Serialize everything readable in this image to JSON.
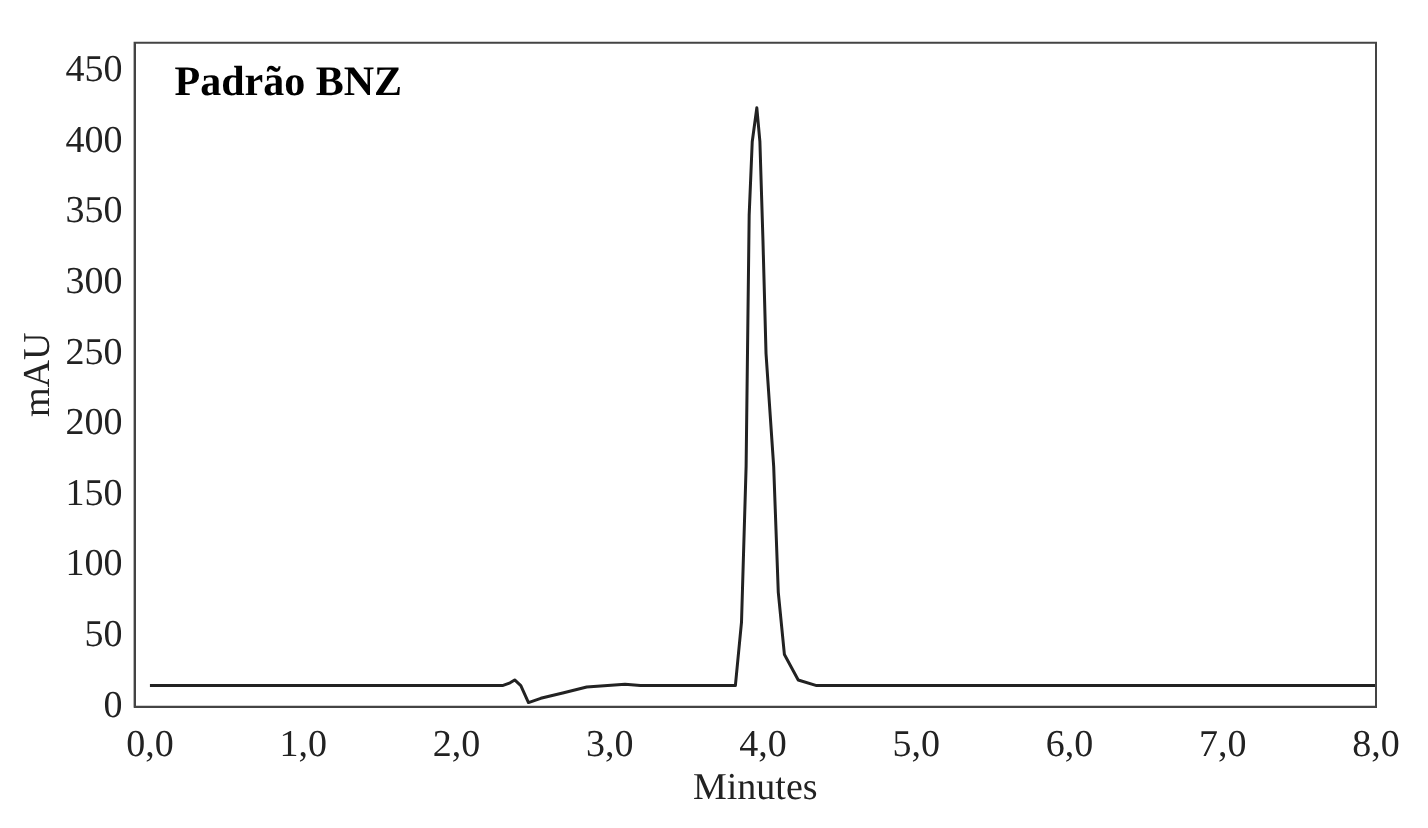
{
  "chart_data": {
    "type": "line",
    "xlabel": "Minutes",
    "ylabel": "mAU",
    "annotations": [
      "Padrão BNZ"
    ],
    "x": [
      0,
      2.3,
      2.35,
      2.38,
      2.42,
      2.47,
      2.55,
      2.7,
      2.85,
      3.1,
      3.2,
      3.82,
      3.86,
      3.89,
      3.91,
      3.93,
      3.96,
      3.98,
      4.0,
      4.02,
      4.07,
      4.1,
      4.14,
      4.23,
      4.35,
      8.0
    ],
    "series": [
      {
        "color": "#222222",
        "values": [
          15,
          15,
          17,
          19,
          15,
          3,
          6,
          10,
          14,
          16,
          15,
          15,
          60,
          170,
          348,
          400,
          424,
          400,
          330,
          250,
          170,
          81,
          37,
          19,
          15,
          15
        ]
      }
    ],
    "xlim": [
      -0.1,
      8.0
    ],
    "xticks": [
      {
        "value": 0,
        "label": "0,0"
      },
      {
        "value": 1,
        "label": "1,0"
      },
      {
        "value": 2,
        "label": "2,0"
      },
      {
        "value": 3,
        "label": "3,0"
      },
      {
        "value": 4,
        "label": "4,0"
      },
      {
        "value": 5,
        "label": "5,0"
      },
      {
        "value": 6,
        "label": "6,0"
      },
      {
        "value": 7,
        "label": "7,0"
      },
      {
        "value": 8,
        "label": "8,0"
      }
    ],
    "ylim": [
      0,
      470
    ],
    "yticks": [
      0,
      50,
      100,
      150,
      200,
      250,
      300,
      350,
      400,
      450
    ],
    "grid": false,
    "legend": false,
    "marker": "none",
    "line_style": "solid"
  }
}
